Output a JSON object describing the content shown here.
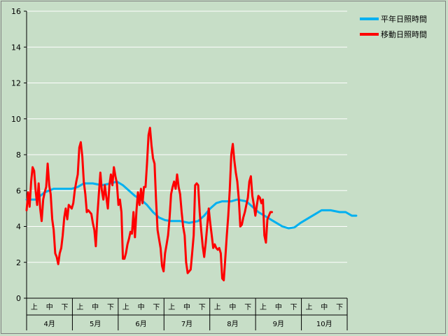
{
  "chart_data": {
    "type": "line",
    "ylim": [
      0,
      16
    ],
    "yticks": [
      "0",
      "2",
      "4",
      "6",
      "8",
      "10",
      "12",
      "14",
      "16"
    ],
    "grid": "horizontal",
    "legend_position": "right",
    "categories": [
      {
        "month": "4月",
        "decades": [
          "上",
          "中",
          "下"
        ]
      },
      {
        "month": "5月",
        "decades": [
          "上",
          "中",
          "下"
        ]
      },
      {
        "month": "6月",
        "decades": [
          "上",
          "中",
          "下"
        ]
      },
      {
        "month": "7月",
        "decades": [
          "上",
          "中",
          "下"
        ]
      },
      {
        "month": "8月",
        "decades": [
          "上",
          "中",
          "下"
        ]
      },
      {
        "month": "9月",
        "decades": [
          "上",
          "中",
          "下"
        ]
      },
      {
        "month": "10月",
        "decades": [
          "上",
          "中",
          "下"
        ]
      }
    ],
    "series": [
      {
        "name": "平年日照時間",
        "color": "#00b0f0",
        "points": [
          [
            0,
            5.5
          ],
          [
            6,
            5.5
          ],
          [
            12,
            5.9
          ],
          [
            18,
            6.1
          ],
          [
            24,
            6.1
          ],
          [
            30,
            6.1
          ],
          [
            34,
            6.2
          ],
          [
            38,
            6.4
          ],
          [
            44,
            6.4
          ],
          [
            50,
            6.3
          ],
          [
            56,
            6.4
          ],
          [
            60,
            6.5
          ],
          [
            64,
            6.3
          ],
          [
            68,
            6.0
          ],
          [
            72,
            5.7
          ],
          [
            76,
            5.5
          ],
          [
            80,
            5.2
          ],
          [
            84,
            4.8
          ],
          [
            88,
            4.5
          ],
          [
            92,
            4.35
          ],
          [
            96,
            4.3
          ],
          [
            102,
            4.3
          ],
          [
            108,
            4.2
          ],
          [
            114,
            4.3
          ],
          [
            118,
            4.6
          ],
          [
            122,
            5.0
          ],
          [
            126,
            5.3
          ],
          [
            130,
            5.4
          ],
          [
            136,
            5.4
          ],
          [
            140,
            5.5
          ],
          [
            146,
            5.4
          ],
          [
            150,
            5.1
          ],
          [
            154,
            4.8
          ],
          [
            158,
            4.6
          ],
          [
            162,
            4.4
          ],
          [
            166,
            4.2
          ],
          [
            170,
            4.0
          ],
          [
            174,
            3.9
          ],
          [
            178,
            3.95
          ],
          [
            182,
            4.2
          ],
          [
            188,
            4.5
          ],
          [
            192,
            4.7
          ],
          [
            196,
            4.9
          ],
          [
            202,
            4.9
          ],
          [
            208,
            4.8
          ],
          [
            212,
            4.8
          ],
          [
            216,
            4.6
          ],
          [
            219,
            4.6
          ]
        ]
      },
      {
        "name": "移動日照時間",
        "color": "#ff0000",
        "points": [
          [
            0,
            4.9
          ],
          [
            1,
            5.9
          ],
          [
            2,
            5.1
          ],
          [
            3,
            6.5
          ],
          [
            4,
            7.3
          ],
          [
            5,
            7.1
          ],
          [
            6,
            6.0
          ],
          [
            7,
            5.2
          ],
          [
            8,
            6.4
          ],
          [
            9,
            5.0
          ],
          [
            10,
            4.3
          ],
          [
            11,
            5.5
          ],
          [
            12,
            5.9
          ],
          [
            13,
            6.2
          ],
          [
            14,
            7.5
          ],
          [
            15,
            6.3
          ],
          [
            16,
            5.8
          ],
          [
            17,
            4.4
          ],
          [
            18,
            3.8
          ],
          [
            19,
            2.5
          ],
          [
            20,
            2.3
          ],
          [
            21,
            1.9
          ],
          [
            22,
            2.5
          ],
          [
            23,
            2.8
          ],
          [
            24,
            3.5
          ],
          [
            25,
            4.5
          ],
          [
            26,
            5.0
          ],
          [
            27,
            4.4
          ],
          [
            28,
            5.2
          ],
          [
            29,
            5.1
          ],
          [
            30,
            5.0
          ],
          [
            31,
            5.3
          ],
          [
            32,
            6.0
          ],
          [
            33,
            6.5
          ],
          [
            34,
            6.9
          ],
          [
            35,
            8.4
          ],
          [
            36,
            8.7
          ],
          [
            37,
            7.9
          ],
          [
            38,
            6.5
          ],
          [
            39,
            5.8
          ],
          [
            40,
            4.8
          ],
          [
            41,
            4.9
          ],
          [
            42,
            4.8
          ],
          [
            43,
            4.7
          ],
          [
            44,
            4.2
          ],
          [
            45,
            3.8
          ],
          [
            46,
            2.9
          ],
          [
            47,
            4.6
          ],
          [
            48,
            5.8
          ],
          [
            49,
            7.0
          ],
          [
            50,
            6.0
          ],
          [
            51,
            5.5
          ],
          [
            52,
            6.3
          ],
          [
            53,
            5.6
          ],
          [
            54,
            5.0
          ],
          [
            55,
            6.3
          ],
          [
            56,
            6.9
          ],
          [
            57,
            6.3
          ],
          [
            58,
            7.3
          ],
          [
            59,
            6.8
          ],
          [
            60,
            6.4
          ],
          [
            61,
            5.2
          ],
          [
            62,
            5.5
          ],
          [
            63,
            4.8
          ],
          [
            64,
            2.2
          ],
          [
            65,
            2.2
          ],
          [
            66,
            2.5
          ],
          [
            67,
            3.0
          ],
          [
            68,
            3.3
          ],
          [
            69,
            3.7
          ],
          [
            70,
            3.6
          ],
          [
            71,
            4.8
          ],
          [
            72,
            3.4
          ],
          [
            73,
            4.9
          ],
          [
            74,
            5.9
          ],
          [
            75,
            5.2
          ],
          [
            76,
            6.1
          ],
          [
            77,
            5.3
          ],
          [
            78,
            6.2
          ],
          [
            79,
            6.2
          ],
          [
            80,
            7.5
          ],
          [
            81,
            9.1
          ],
          [
            82,
            9.5
          ],
          [
            83,
            8.5
          ],
          [
            84,
            7.8
          ],
          [
            85,
            7.5
          ],
          [
            86,
            5.5
          ],
          [
            87,
            3.8
          ],
          [
            88,
            3.3
          ],
          [
            89,
            2.8
          ],
          [
            90,
            1.8
          ],
          [
            91,
            1.5
          ],
          [
            92,
            2.5
          ],
          [
            93,
            3.0
          ],
          [
            94,
            3.5
          ],
          [
            95,
            4.5
          ],
          [
            96,
            5.8
          ],
          [
            97,
            6.2
          ],
          [
            98,
            6.5
          ],
          [
            99,
            6.1
          ],
          [
            100,
            6.9
          ],
          [
            101,
            6.2
          ],
          [
            102,
            5.8
          ],
          [
            103,
            4.8
          ],
          [
            104,
            4.0
          ],
          [
            105,
            3.5
          ],
          [
            106,
            2.0
          ],
          [
            107,
            1.4
          ],
          [
            108,
            1.5
          ],
          [
            109,
            1.6
          ],
          [
            110,
            2.5
          ],
          [
            111,
            3.5
          ],
          [
            112,
            6.3
          ],
          [
            113,
            6.4
          ],
          [
            114,
            6.3
          ],
          [
            115,
            4.8
          ],
          [
            116,
            3.8
          ],
          [
            117,
            2.9
          ],
          [
            118,
            2.3
          ],
          [
            119,
            3.1
          ],
          [
            120,
            4.0
          ],
          [
            121,
            5.0
          ],
          [
            122,
            4.2
          ],
          [
            123,
            3.5
          ],
          [
            124,
            2.8
          ],
          [
            125,
            3.0
          ],
          [
            126,
            2.8
          ],
          [
            127,
            2.7
          ],
          [
            128,
            2.8
          ],
          [
            129,
            2.5
          ],
          [
            130,
            1.1
          ],
          [
            131,
            1.0
          ],
          [
            132,
            2.2
          ],
          [
            133,
            3.5
          ],
          [
            134,
            4.6
          ],
          [
            135,
            6.1
          ],
          [
            136,
            8.0
          ],
          [
            137,
            8.6
          ],
          [
            138,
            7.7
          ],
          [
            139,
            7.0
          ],
          [
            140,
            6.5
          ],
          [
            141,
            5.5
          ],
          [
            142,
            4.0
          ],
          [
            143,
            4.1
          ],
          [
            144,
            4.5
          ],
          [
            145,
            4.8
          ],
          [
            146,
            5.2
          ],
          [
            147,
            5.6
          ],
          [
            148,
            6.5
          ],
          [
            149,
            6.8
          ],
          [
            150,
            5.7
          ],
          [
            151,
            5.2
          ],
          [
            152,
            4.6
          ],
          [
            153,
            5.2
          ],
          [
            154,
            5.7
          ],
          [
            155,
            5.6
          ],
          [
            156,
            5.3
          ],
          [
            157,
            5.5
          ],
          [
            158,
            3.5
          ],
          [
            159,
            3.1
          ],
          [
            160,
            4.4
          ],
          [
            161,
            4.6
          ],
          [
            162,
            4.8
          ],
          [
            163,
            4.8
          ]
        ]
      }
    ]
  }
}
